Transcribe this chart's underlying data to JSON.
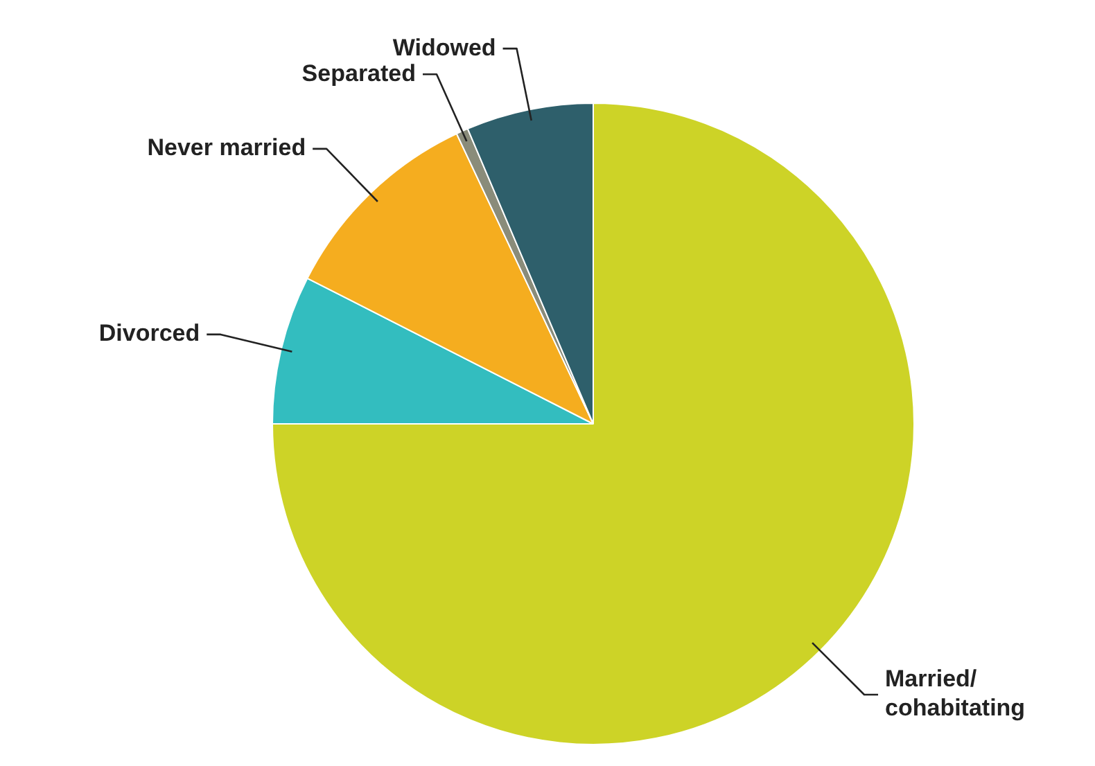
{
  "chart_data": {
    "type": "pie",
    "categories": [
      "Married/cohabitating",
      "Divorced",
      "Never married",
      "Separated",
      "Widowed"
    ],
    "values": [
      75,
      7.5,
      10.5,
      0.6,
      6.4
    ],
    "colors": [
      "#cdd327",
      "#33bdbf",
      "#f5ad1f",
      "#8a8c7a",
      "#2e5f6b"
    ],
    "legend": false
  }
}
